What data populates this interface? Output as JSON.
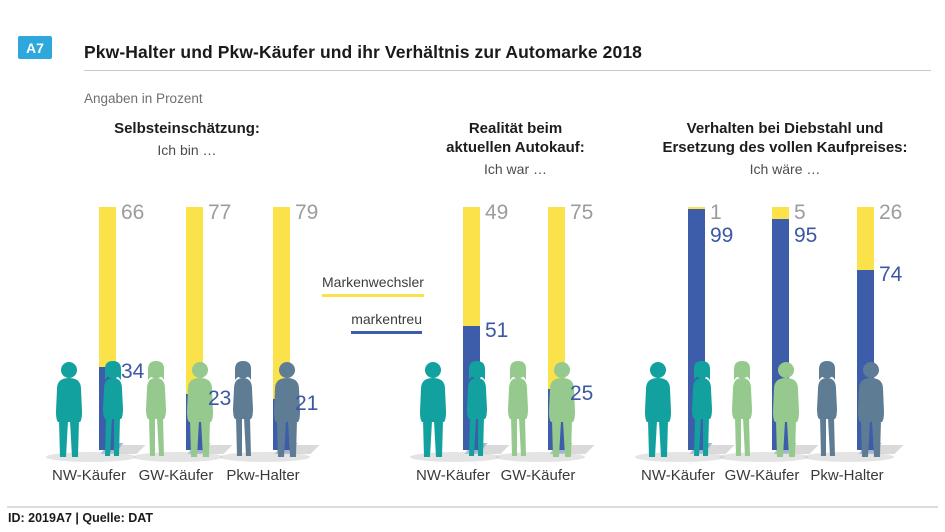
{
  "figure_id": "A7",
  "title": "Pkw-Halter und Pkw-Käufer und ihr Verhältnis zur Automarke 2018",
  "subtitle": "Angaben in Prozent",
  "footer": "ID: 2019A7 | Quelle: DAT",
  "legend": [
    {
      "label": "Markenwechsler",
      "color": "#FBE24B"
    },
    {
      "label": "markentreu",
      "color": "#3D5CA9"
    }
  ],
  "colors": {
    "badge_bg": "#2EA8DC",
    "markenwechsler_yellow": "#FBE24B",
    "markentreu_blue": "#3D5CA9",
    "value_gray": "#9C9C9C",
    "value_blue": "#3B57A6",
    "people": {
      "NW-Käufer": "#12A19F",
      "GW-Käufer": "#95C98E",
      "Pkw-Halter": "#5E7D94"
    }
  },
  "chart_data": {
    "type": "bar",
    "stacked": true,
    "units": "percent",
    "axis": {
      "min": 0,
      "max": 100,
      "gridlines": false
    },
    "series_names": [
      "Markenwechsler",
      "markentreu"
    ],
    "groups": [
      {
        "heading_lines": [
          "Selbsteinschätzung:"
        ],
        "subheading": "Ich bin …",
        "categories": [
          "NW-Käufer",
          "GW-Käufer",
          "Pkw-Halter"
        ],
        "series": [
          {
            "name": "Markenwechsler",
            "values": [
              66,
              77,
              79
            ]
          },
          {
            "name": "markentreu",
            "values": [
              34,
              23,
              21
            ]
          }
        ]
      },
      {
        "heading_lines": [
          "Realität beim",
          "aktuellen Autokauf:"
        ],
        "subheading": "Ich war …",
        "categories": [
          "NW-Käufer",
          "GW-Käufer"
        ],
        "series": [
          {
            "name": "Markenwechsler",
            "values": [
              49,
              75
            ]
          },
          {
            "name": "markentreu",
            "values": [
              51,
              25
            ]
          }
        ]
      },
      {
        "heading_lines": [
          "Verhalten bei Diebstahl und",
          "Ersetzung des vollen Kaufpreises:"
        ],
        "subheading": "Ich wäre …",
        "categories": [
          "NW-Käufer",
          "GW-Käufer",
          "Pkw-Halter"
        ],
        "series": [
          {
            "name": "Markenwechsler",
            "values": [
              1,
              5,
              26
            ]
          },
          {
            "name": "markentreu",
            "values": [
              99,
              95,
              74
            ]
          }
        ]
      }
    ]
  }
}
